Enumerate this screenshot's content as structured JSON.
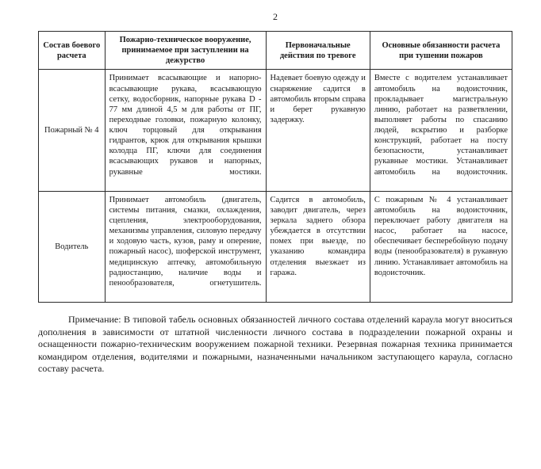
{
  "page_number": "2",
  "columns": [
    "Состав боевого расчета",
    "Пожарно-техническое вооружение, принимаемое при заступлении на дежурство",
    "Первоначальные действия по тревоге",
    "Основные обязанности расчета при тушении пожаров"
  ],
  "rows": [
    {
      "label": "Пожарный № 4",
      "eq": "Принимает всасывающие и напорно-всасывающие рукава, всасывающую сетку, водосборник, напорные рукава D - 77 мм длиной 4,5 м для работы от ПГ, переходные головки, пожарную колонку, ключ торцовый для открывания гидрантов, крюк для открывания крышки колодца ПГ, ключи для соединения всасывающих рукавов и напорных, рукавные мостики.",
      "alarm": "Надевает боевую одежду и снаряжение садится в автомобиль вторым справа и берет рукавную задержку.",
      "duty": "Вместе с водителем устанавливает автомобиль на водоисточник, прокладывает магистральную линию, работает на разветвлении, выполняет работы по спасанию людей, вскрытию и разборке конструкций, работает на посту безопасности, устанавливает рукавные мостики.\nУстанавливает автомобиль на водоисточник."
    },
    {
      "label": "Водитель",
      "eq": "Принимает автомобиль (двигатель, системы питания, смазки, охлаждения, сцепления, электрооборудования, механизмы управления, силовую передачу и ходовую часть, кузов, раму и оперение, пожарный насос), шоферской инструмент, медицинскую аптечку, автомобильную радиостанцию, наличие воды и пенообразователя, огнетушитель.",
      "alarm": "Садится в автомобиль, заводит двигатель, через зеркала заднего обзора убеждается в отсутствии помех при выезде, по указанию командира отделения выезжает из гаража.",
      "duty": "С пожарным № 4 устанавливает автомобиль на водоисточник, переключает работу двигателя на насос, работает на насосе, обеспечивает бесперебойную подачу воды (пенообразователя) в рукавную линию.\nУстанавливает автомобиль на водоисточник."
    }
  ],
  "note": "Примечание: В типовой табель основных обязанностей личного состава отделений караула могут вноситься дополнения в зависимости от штатной численности личного состава в подразделении пожарной охраны и оснащенности пожарно-техническим вооружением пожарной техники. Резервная пожарная техника принимается командиром отделения, водителями и пожарными, назначенными начальником заступающего караула, согласно составу  расчета."
}
